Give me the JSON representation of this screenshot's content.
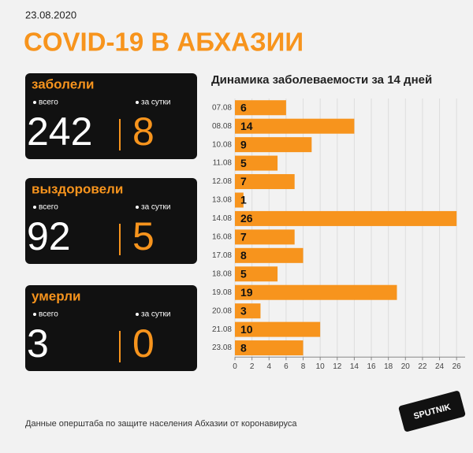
{
  "header": {
    "date": "23.08.2020",
    "title": "COVID-19 В АБХАЗИИ"
  },
  "cards": [
    {
      "label": "заболели",
      "total_label": "всего",
      "daily_label": "за сутки",
      "total": 242,
      "daily": 8
    },
    {
      "label": "выздоровели",
      "total_label": "всего",
      "daily_label": "за сутки",
      "total": 92,
      "daily": 5
    },
    {
      "label": "умерли",
      "total_label": "всего",
      "daily_label": "за сутки",
      "total": 3,
      "daily": 0
    }
  ],
  "chart_data": {
    "type": "bar",
    "orientation": "horizontal",
    "title": "Динамика заболеваемости за 14 дней",
    "categories": [
      "07.08",
      "08.08",
      "10.08",
      "11.08",
      "12.08",
      "13.08",
      "14.08",
      "16.08",
      "17.08",
      "18.08",
      "19.08",
      "20.08",
      "21.08",
      "23.08"
    ],
    "values": [
      6,
      14,
      9,
      5,
      7,
      1,
      26,
      7,
      8,
      5,
      19,
      3,
      10,
      8
    ],
    "color": "#f7941d",
    "xlim": [
      0,
      27
    ],
    "xticks": [
      0,
      2,
      4,
      6,
      8,
      10,
      12,
      14,
      16,
      18,
      20,
      22,
      24,
      26
    ],
    "grid": true
  },
  "footer": {
    "source": "Данные оперштаба по защите населения Абхазии от коронавируса",
    "logo": "SPUTNIK"
  }
}
